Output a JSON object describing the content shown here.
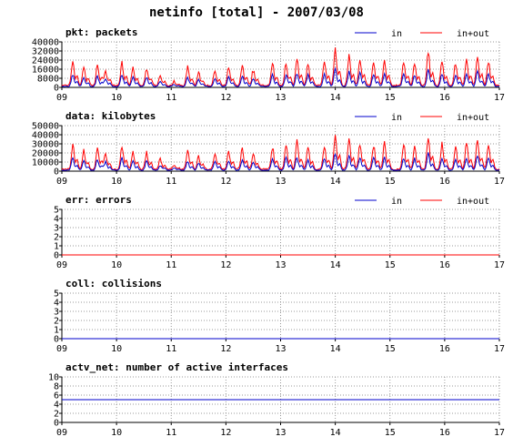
{
  "title": "netinfo [total] - 2007/03/08",
  "colors": {
    "in": "#0000cc",
    "inout": "#ff0000",
    "grid": "#999999",
    "axis": "#000000"
  },
  "legend": {
    "in": "in",
    "inout": "in+out"
  },
  "chart_data": [
    {
      "type": "line",
      "title": "pkt: packets",
      "legend_position": "top-right",
      "grid": true,
      "x_tick_labels": [
        "09",
        "10",
        "11",
        "12",
        "13",
        "14",
        "15",
        "16",
        "17"
      ],
      "xlim": [
        9,
        17
      ],
      "ylim": [
        0,
        40000
      ],
      "y_ticks": [
        0,
        8000,
        16000,
        24000,
        32000,
        40000
      ],
      "y_tick_labels": [
        "0",
        "8000",
        "16000",
        "24000",
        "32000",
        "40000"
      ],
      "series": [
        {
          "name": "in",
          "color": "#0000cc",
          "peaks": [
            [
              9.2,
              12000
            ],
            [
              9.4,
              9000
            ],
            [
              9.65,
              10000
            ],
            [
              9.8,
              8000
            ],
            [
              10.1,
              11000
            ],
            [
              10.3,
              9000
            ],
            [
              10.55,
              9000
            ],
            [
              10.8,
              5000
            ],
            [
              11.05,
              2000
            ],
            [
              11.3,
              9000
            ],
            [
              11.5,
              7000
            ],
            [
              11.8,
              8000
            ],
            [
              12.05,
              9000
            ],
            [
              12.3,
              10000
            ],
            [
              12.5,
              8000
            ],
            [
              12.85,
              11000
            ],
            [
              13.1,
              12000
            ],
            [
              13.3,
              13000
            ],
            [
              13.5,
              11000
            ],
            [
              13.8,
              12000
            ],
            [
              14.0,
              17000
            ],
            [
              14.25,
              14000
            ],
            [
              14.45,
              13000
            ],
            [
              14.7,
              12000
            ],
            [
              14.9,
              12000
            ],
            [
              15.25,
              12000
            ],
            [
              15.45,
              11000
            ],
            [
              15.7,
              16000
            ],
            [
              15.95,
              12000
            ],
            [
              16.2,
              11000
            ],
            [
              16.4,
              12000
            ],
            [
              16.6,
              14000
            ],
            [
              16.8,
              12000
            ]
          ]
        },
        {
          "name": "in+out",
          "color": "#ff0000",
          "peaks": [
            [
              9.2,
              24000
            ],
            [
              9.4,
              18000
            ],
            [
              9.65,
              20000
            ],
            [
              9.8,
              15000
            ],
            [
              10.1,
              22000
            ],
            [
              10.3,
              18000
            ],
            [
              10.55,
              17000
            ],
            [
              10.8,
              10000
            ],
            [
              11.05,
              4000
            ],
            [
              11.3,
              18000
            ],
            [
              11.5,
              13000
            ],
            [
              11.8,
              15000
            ],
            [
              12.05,
              17000
            ],
            [
              12.3,
              20000
            ],
            [
              12.5,
              15000
            ],
            [
              12.85,
              22000
            ],
            [
              13.1,
              23000
            ],
            [
              13.3,
              26000
            ],
            [
              13.5,
              21000
            ],
            [
              13.8,
              24000
            ],
            [
              14.0,
              36000
            ],
            [
              14.25,
              28000
            ],
            [
              14.45,
              26000
            ],
            [
              14.7,
              23000
            ],
            [
              14.9,
              24000
            ],
            [
              15.25,
              24000
            ],
            [
              15.45,
              22000
            ],
            [
              15.7,
              32000
            ],
            [
              15.95,
              24000
            ],
            [
              16.2,
              22000
            ],
            [
              16.4,
              25000
            ],
            [
              16.6,
              28000
            ],
            [
              16.8,
              24000
            ]
          ]
        }
      ]
    },
    {
      "type": "line",
      "title": "data: kilobytes",
      "legend_position": "top-right",
      "grid": true,
      "x_tick_labels": [
        "09",
        "10",
        "11",
        "12",
        "13",
        "14",
        "15",
        "16",
        "17"
      ],
      "xlim": [
        9,
        17
      ],
      "ylim": [
        0,
        50000
      ],
      "y_ticks": [
        0,
        10000,
        20000,
        30000,
        40000,
        50000
      ],
      "y_tick_labels": [
        "0",
        "10000",
        "20000",
        "30000",
        "40000",
        "50000"
      ],
      "series": [
        {
          "name": "in",
          "color": "#0000cc",
          "peaks": [
            [
              9.2,
              15000
            ],
            [
              9.4,
              11000
            ],
            [
              9.65,
              13000
            ],
            [
              9.8,
              10000
            ],
            [
              10.1,
              14000
            ],
            [
              10.3,
              11000
            ],
            [
              10.55,
              11000
            ],
            [
              10.8,
              6000
            ],
            [
              11.05,
              3000
            ],
            [
              11.3,
              11000
            ],
            [
              11.5,
              9000
            ],
            [
              11.8,
              10000
            ],
            [
              12.05,
              11000
            ],
            [
              12.3,
              13000
            ],
            [
              12.5,
              10000
            ],
            [
              12.85,
              14000
            ],
            [
              13.1,
              15000
            ],
            [
              13.3,
              16000
            ],
            [
              13.5,
              13000
            ],
            [
              13.8,
              15000
            ],
            [
              14.0,
              21000
            ],
            [
              14.25,
              17000
            ],
            [
              14.45,
              16000
            ],
            [
              14.7,
              15000
            ],
            [
              14.9,
              15000
            ],
            [
              15.25,
              15000
            ],
            [
              15.45,
              14000
            ],
            [
              15.7,
              20000
            ],
            [
              15.95,
              15000
            ],
            [
              16.2,
              14000
            ],
            [
              16.4,
              15000
            ],
            [
              16.6,
              17000
            ],
            [
              16.8,
              15000
            ]
          ]
        },
        {
          "name": "in+out",
          "color": "#ff0000",
          "peaks": [
            [
              9.2,
              30000
            ],
            [
              9.4,
              22000
            ],
            [
              9.65,
              25000
            ],
            [
              9.8,
              19000
            ],
            [
              10.1,
              28000
            ],
            [
              10.3,
              22000
            ],
            [
              10.55,
              21000
            ],
            [
              10.8,
              12000
            ],
            [
              11.05,
              5000
            ],
            [
              11.3,
              22000
            ],
            [
              11.5,
              16000
            ],
            [
              11.8,
              19000
            ],
            [
              12.05,
              21000
            ],
            [
              12.3,
              25000
            ],
            [
              12.5,
              19000
            ],
            [
              12.85,
              28000
            ],
            [
              13.1,
              29000
            ],
            [
              13.3,
              33000
            ],
            [
              13.5,
              26000
            ],
            [
              13.8,
              30000
            ],
            [
              14.0,
              43000
            ],
            [
              14.25,
              35000
            ],
            [
              14.45,
              32000
            ],
            [
              14.7,
              29000
            ],
            [
              14.9,
              30000
            ],
            [
              15.25,
              30000
            ],
            [
              15.45,
              28000
            ],
            [
              15.7,
              40000
            ],
            [
              15.95,
              30000
            ],
            [
              16.2,
              28000
            ],
            [
              16.4,
              31000
            ],
            [
              16.6,
              35000
            ],
            [
              16.8,
              30000
            ]
          ]
        }
      ]
    },
    {
      "type": "line",
      "title": "err: errors",
      "legend_position": "top-right",
      "grid": true,
      "x_tick_labels": [
        "09",
        "10",
        "11",
        "12",
        "13",
        "14",
        "15",
        "16",
        "17"
      ],
      "xlim": [
        9,
        17
      ],
      "ylim": [
        0,
        5
      ],
      "y_ticks": [
        0,
        1,
        2,
        3,
        4,
        5
      ],
      "y_tick_labels": [
        "0",
        "1",
        "2",
        "3",
        "4",
        "5"
      ],
      "series": [
        {
          "name": "in",
          "color": "#0000cc",
          "constant": 0
        },
        {
          "name": "in+out",
          "color": "#ff0000",
          "constant": 0
        }
      ]
    },
    {
      "type": "line",
      "title": "coll: collisions",
      "grid": true,
      "x_tick_labels": [
        "09",
        "10",
        "11",
        "12",
        "13",
        "14",
        "15",
        "16",
        "17"
      ],
      "xlim": [
        9,
        17
      ],
      "ylim": [
        0,
        5
      ],
      "y_ticks": [
        0,
        1,
        2,
        3,
        4,
        5
      ],
      "y_tick_labels": [
        "0",
        "1",
        "2",
        "3",
        "4",
        "5"
      ],
      "series": [
        {
          "color": "#0000cc",
          "constant": 0
        }
      ]
    },
    {
      "type": "line",
      "title": "actv_net: number of active interfaces",
      "grid": true,
      "x_tick_labels": [
        "09",
        "10",
        "11",
        "12",
        "13",
        "14",
        "15",
        "16",
        "17"
      ],
      "xlim": [
        9,
        17
      ],
      "ylim": [
        0,
        10
      ],
      "y_ticks": [
        0,
        2,
        4,
        6,
        8,
        10
      ],
      "y_tick_labels": [
        "0",
        "2",
        "4",
        "6",
        "8",
        "10"
      ],
      "series": [
        {
          "color": "#0000cc",
          "constant": 5
        }
      ]
    }
  ]
}
